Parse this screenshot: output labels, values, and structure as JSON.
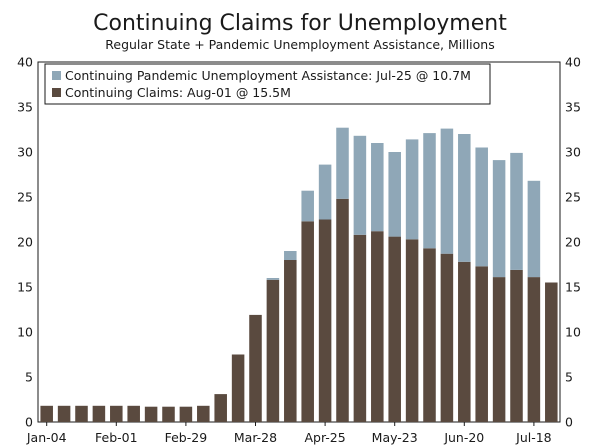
{
  "chart_data": {
    "type": "bar",
    "title": "Continuing Claims for Unemployment",
    "subtitle": "Regular State + Pandemic Unemployment Assistance, Millions",
    "ylim": [
      0,
      40
    ],
    "yticks": [
      0,
      5,
      10,
      15,
      20,
      25,
      30,
      35,
      40
    ],
    "x_tick_labels": [
      {
        "label": "Jan-04",
        "index": 0
      },
      {
        "label": "Feb-01",
        "index": 4
      },
      {
        "label": "Feb-29",
        "index": 8
      },
      {
        "label": "Mar-28",
        "index": 12
      },
      {
        "label": "Apr-25",
        "index": 16
      },
      {
        "label": "May-23",
        "index": 20
      },
      {
        "label": "Jun-20",
        "index": 24
      },
      {
        "label": "Jul-18",
        "index": 28
      }
    ],
    "legend": {
      "position": "top-left",
      "entries": [
        {
          "label": "Continuing Pandemic Unemployment Assistance: Jul-25 @ 10.7M",
          "color": "#8fa7b7"
        },
        {
          "label": "Continuing Claims: Aug-01 @ 15.5M",
          "color": "#5a4a3f"
        }
      ]
    },
    "series": [
      {
        "name": "Continuing Claims",
        "color": "#5a4a3f",
        "values": [
          1.8,
          1.8,
          1.8,
          1.8,
          1.8,
          1.8,
          1.7,
          1.7,
          1.7,
          1.8,
          3.1,
          7.5,
          11.9,
          15.8,
          18.0,
          22.3,
          22.5,
          24.8,
          20.8,
          21.2,
          20.6,
          20.3,
          19.3,
          18.7,
          17.8,
          17.3,
          16.1,
          16.9,
          16.1,
          15.5
        ]
      },
      {
        "name": "Continuing Pandemic Unemployment Assistance",
        "color": "#8fa7b7",
        "values": [
          0,
          0,
          0,
          0,
          0,
          0,
          0,
          0,
          0,
          0,
          0,
          0,
          0,
          0.2,
          1.0,
          3.4,
          6.1,
          7.9,
          11.0,
          9.8,
          9.4,
          11.1,
          12.8,
          13.9,
          14.2,
          13.2,
          13.0,
          13.0,
          10.7,
          0
        ]
      }
    ]
  }
}
